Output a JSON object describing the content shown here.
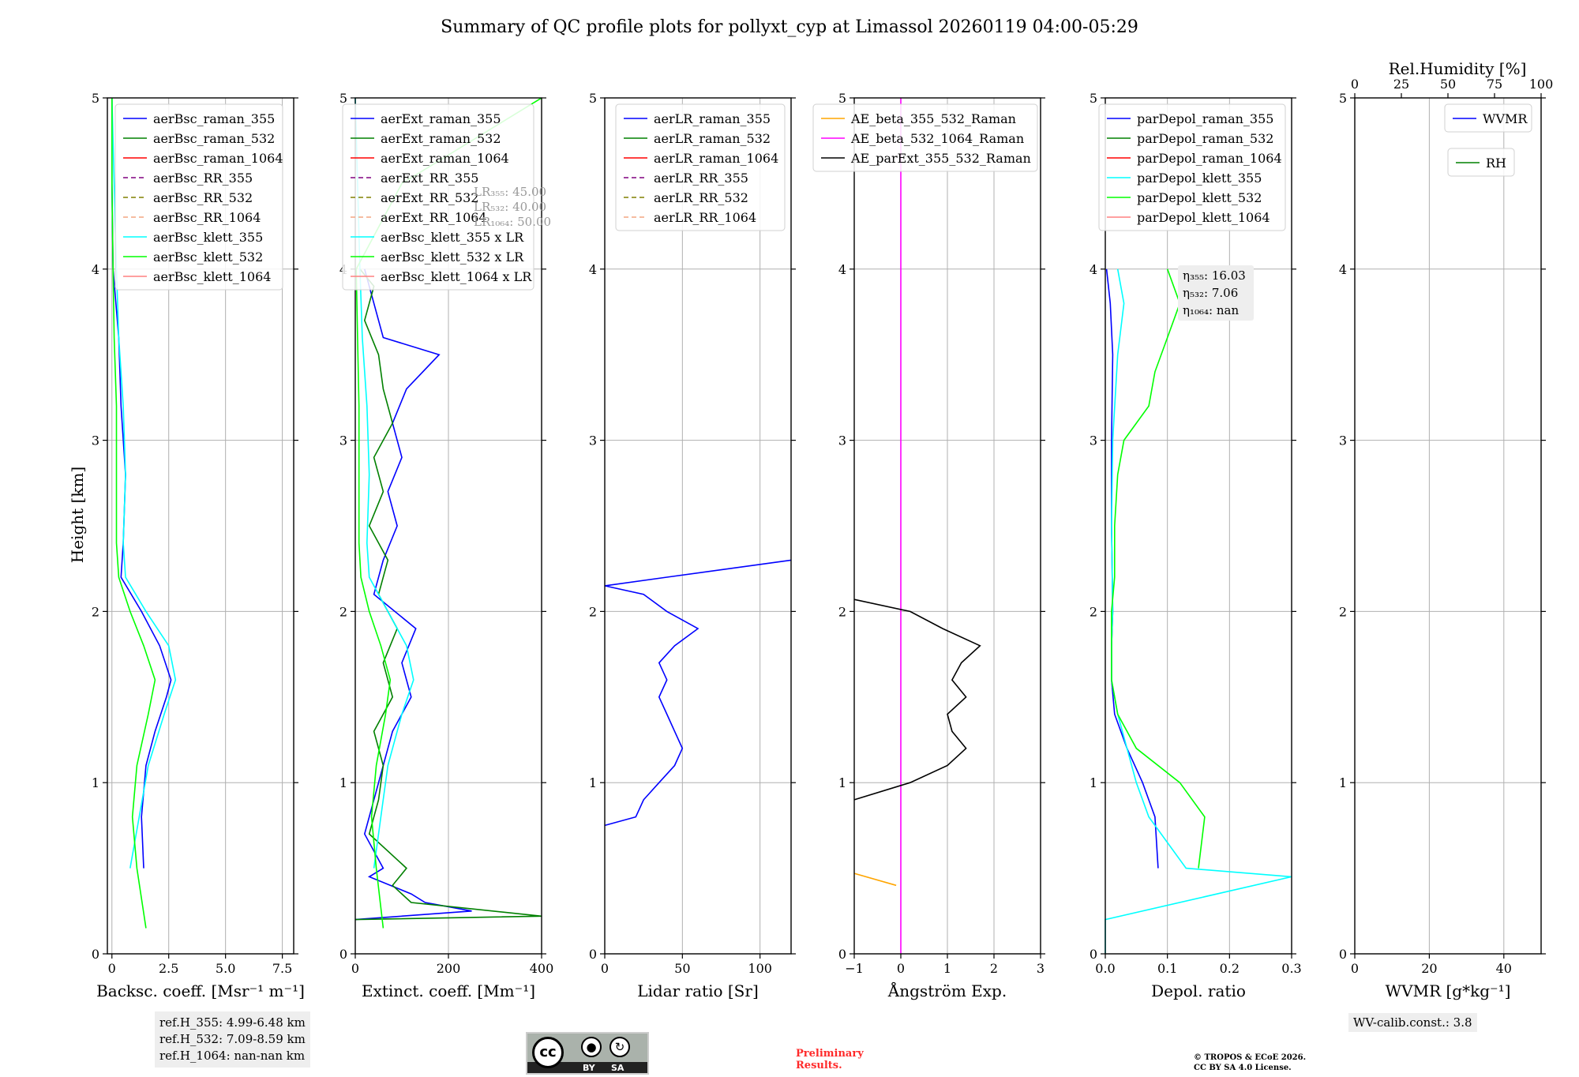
{
  "page": {
    "title": "Summary of QC profile plots for pollyxt_cyp at Limassol 20260119 04:00-05:29",
    "ylabel": "Height [km]",
    "ref_heights": [
      "ref.H_355: 4.99-6.48 km",
      "ref.H_532: 7.09-8.59 km",
      "ref.H_1064: nan-nan km"
    ],
    "license_badge": {
      "by": "BY",
      "sa": "SA",
      "cc": "cc"
    },
    "preliminary": [
      "Preliminary",
      "Results."
    ],
    "copyright": [
      "© TROPOS & ECoE 2026.",
      "CC BY SA 4.0 License."
    ],
    "wv_calib": "WV-calib.const.: 3.8",
    "colors": {
      "blue": "#0000ff",
      "green": "#008000",
      "red": "#ff0000",
      "purple": "#800080",
      "olive": "#808000",
      "salmon": "#f4a582",
      "cyan": "#00ffff",
      "lime": "#00ff00",
      "pink": "#ff8080",
      "orange": "#ffa500",
      "magenta": "#ff00ff",
      "black": "#000000"
    }
  },
  "chart_data": [
    {
      "type": "line",
      "id": "backscatter",
      "xlabel": "Backsc. coeff. [Msr⁻¹ m⁻¹]",
      "xlim": [
        -0.2,
        8
      ],
      "xticks": [
        0,
        2.5,
        5.0,
        7.5
      ],
      "xtick_labels": [
        "0",
        "2.5",
        "5.0",
        "7.5"
      ],
      "ylim": [
        0,
        5
      ],
      "yticks": [
        0,
        1,
        2,
        3,
        4,
        5
      ],
      "legend": [
        "aerBsc_raman_355",
        "aerBsc_raman_532",
        "aerBsc_raman_1064",
        "aerBsc_RR_355",
        "aerBsc_RR_532",
        "aerBsc_RR_1064",
        "aerBsc_klett_355",
        "aerBsc_klett_532",
        "aerBsc_klett_1064"
      ],
      "legend_styles": [
        "blue-solid",
        "green-solid",
        "red-solid",
        "purple-dash",
        "olive-dash",
        "salmon-dash",
        "cyan-solid",
        "lime-solid",
        "pink-solid"
      ],
      "series": [
        {
          "name": "aerBsc_raman_355",
          "color": "blue",
          "y": [
            0.5,
            0.8,
            1.1,
            1.3,
            1.5,
            1.6,
            1.8,
            2.0,
            2.2,
            2.4,
            2.8,
            3.2,
            3.6,
            4.0,
            4.5,
            5.0
          ],
          "x": [
            1.4,
            1.3,
            1.5,
            1.9,
            2.4,
            2.6,
            2.1,
            1.3,
            0.4,
            0.5,
            0.6,
            0.4,
            0.3,
            0.05,
            0.0,
            0.0
          ]
        },
        {
          "name": "aerBsc_klett_355",
          "color": "cyan",
          "y": [
            0.5,
            0.8,
            1.1,
            1.4,
            1.6,
            1.8,
            2.0,
            2.2,
            2.4,
            2.8,
            3.2,
            3.6,
            4.0,
            4.5,
            5.0
          ],
          "x": [
            0.8,
            1.2,
            1.6,
            2.3,
            2.8,
            2.5,
            1.5,
            0.6,
            0.5,
            0.6,
            0.5,
            0.3,
            0.2,
            0.1,
            0.0
          ]
        },
        {
          "name": "aerBsc_klett_532",
          "color": "lime",
          "y": [
            0.15,
            0.5,
            0.8,
            1.1,
            1.4,
            1.6,
            1.8,
            2.0,
            2.2,
            2.4,
            2.8,
            3.2,
            3.6,
            4.0,
            4.5,
            5.0
          ],
          "x": [
            1.5,
            1.1,
            0.9,
            1.1,
            1.6,
            1.9,
            1.4,
            0.8,
            0.3,
            0.2,
            0.2,
            0.2,
            0.1,
            0.05,
            0.0,
            0.0
          ]
        }
      ]
    },
    {
      "type": "line",
      "id": "extinction",
      "xlabel": "Extinct. coeff. [Mm⁻¹]",
      "xlim": [
        0,
        400
      ],
      "xticks": [
        0,
        200,
        400
      ],
      "xtick_labels": [
        "0",
        "200",
        "400"
      ],
      "ylim": [
        0,
        5
      ],
      "yticks": [
        0,
        1,
        2,
        3,
        4,
        5
      ],
      "legend": [
        "aerExt_raman_355",
        "aerExt_raman_532",
        "aerExt_raman_1064",
        "aerExt_RR_355",
        "aerExt_RR_532",
        "aerExt_RR_1064",
        "aerBsc_klett_355 x LR",
        "aerBsc_klett_532 x LR",
        "aerBsc_klett_1064 x LR"
      ],
      "legend_styles": [
        "blue-solid",
        "green-solid",
        "red-solid",
        "purple-dash",
        "olive-dash",
        "salmon-dash",
        "cyan-solid",
        "lime-solid",
        "pink-solid"
      ],
      "lr_labels": [
        "LR₃₅₅: 45.00",
        "LR₅₃₂: 40.00",
        "LR₁₀₆₄: 50.00"
      ],
      "series": [
        {
          "name": "aerExt_raman_355",
          "color": "blue",
          "y": [
            0.2,
            0.25,
            0.3,
            0.35,
            0.45,
            0.5,
            0.7,
            0.9,
            1.1,
            1.3,
            1.5,
            1.7,
            1.9,
            2.1,
            2.3,
            2.5,
            2.7,
            2.9,
            3.1,
            3.3,
            3.5,
            3.6,
            3.8,
            4.0
          ],
          "x": [
            0,
            250,
            150,
            120,
            30,
            60,
            20,
            40,
            60,
            80,
            120,
            100,
            130,
            40,
            60,
            90,
            70,
            100,
            80,
            110,
            180,
            60,
            40,
            20
          ]
        },
        {
          "name": "aerExt_raman_532",
          "color": "green",
          "y": [
            0.2,
            0.22,
            0.3,
            0.4,
            0.5,
            0.7,
            0.9,
            1.1,
            1.3,
            1.5,
            1.7,
            1.9,
            2.1,
            2.3,
            2.5,
            2.7,
            2.9,
            3.1,
            3.3,
            3.5,
            3.7,
            3.9,
            4.0
          ],
          "x": [
            0,
            400,
            120,
            80,
            110,
            30,
            50,
            60,
            40,
            80,
            60,
            90,
            50,
            70,
            30,
            60,
            40,
            80,
            60,
            50,
            20,
            40,
            10
          ]
        },
        {
          "name": "aerBsc_klett_355 x LR",
          "color": "cyan",
          "y": [
            0.5,
            0.8,
            1.1,
            1.4,
            1.6,
            1.8,
            2.0,
            2.2,
            2.4,
            2.8,
            3.2,
            3.6,
            4.0,
            4.5,
            5.0
          ],
          "x": [
            40,
            55,
            70,
            100,
            125,
            110,
            70,
            30,
            25,
            30,
            25,
            15,
            10,
            5,
            0
          ]
        },
        {
          "name": "aerBsc_klett_532 x LR",
          "color": "lime",
          "y": [
            0.15,
            0.5,
            0.8,
            1.1,
            1.4,
            1.6,
            1.8,
            2.0,
            2.2,
            2.4,
            2.8,
            3.2,
            3.6,
            4.0,
            4.5,
            5.0
          ],
          "x": [
            60,
            45,
            35,
            45,
            65,
            75,
            55,
            30,
            12,
            8,
            8,
            8,
            5,
            2,
            100,
            400
          ]
        }
      ]
    },
    {
      "type": "line",
      "id": "lidar_ratio",
      "xlabel": "Lidar ratio [Sr]",
      "xlim": [
        0,
        120
      ],
      "xticks": [
        0,
        50,
        100
      ],
      "xtick_labels": [
        "0",
        "50",
        "100"
      ],
      "ylim": [
        0,
        5
      ],
      "yticks": [
        0,
        1,
        2,
        3,
        4,
        5
      ],
      "legend": [
        "aerLR_raman_355",
        "aerLR_raman_532",
        "aerLR_raman_1064",
        "aerLR_RR_355",
        "aerLR_RR_532",
        "aerLR_RR_1064"
      ],
      "legend_styles": [
        "blue-solid",
        "green-solid",
        "red-solid",
        "purple-dash",
        "olive-dash",
        "salmon-dash"
      ],
      "series": [
        {
          "name": "aerLR_raman_355",
          "color": "blue",
          "y": [
            0.75,
            0.8,
            0.9,
            1.0,
            1.1,
            1.2,
            1.3,
            1.4,
            1.5,
            1.6,
            1.7,
            1.8,
            1.9,
            2.0,
            2.1,
            2.15,
            2.2,
            2.3
          ],
          "x": [
            0,
            20,
            25,
            35,
            45,
            50,
            45,
            40,
            35,
            40,
            35,
            45,
            60,
            40,
            25,
            0,
            40,
            120
          ]
        }
      ]
    },
    {
      "type": "line",
      "id": "angstrom",
      "xlabel": "Ångström Exp.",
      "xlim": [
        -1,
        3
      ],
      "xticks": [
        -1,
        0,
        1,
        2,
        3
      ],
      "xtick_labels": [
        "−1",
        "0",
        "1",
        "2",
        "3"
      ],
      "ylim": [
        0,
        5
      ],
      "yticks": [
        0,
        1,
        2,
        3,
        4,
        5
      ],
      "legend": [
        "AE_beta_355_532_Raman",
        "AE_beta_532_1064_Raman",
        "AE_parExt_355_532_Raman"
      ],
      "legend_styles": [
        "orange-solid",
        "magenta-solid",
        "black-solid"
      ],
      "series": [
        {
          "name": "AE_beta_355_532_Raman",
          "color": "orange",
          "y": [
            0.47,
            0.4
          ],
          "x": [
            -1,
            -0.1
          ]
        },
        {
          "name": "AE_beta_532_1064_Raman",
          "color": "magenta",
          "y": [
            0,
            5
          ],
          "x": [
            0,
            0
          ]
        },
        {
          "name": "AE_parExt_355_532_Raman",
          "color": "black",
          "y": [
            0.9,
            1.0,
            1.1,
            1.2,
            1.3,
            1.4,
            1.5,
            1.6,
            1.7,
            1.8,
            1.9,
            2.0,
            2.07
          ],
          "x": [
            -1,
            0.2,
            1.0,
            1.4,
            1.1,
            1.0,
            1.4,
            1.1,
            1.3,
            1.7,
            0.9,
            0.2,
            -1
          ]
        }
      ]
    },
    {
      "type": "line",
      "id": "depol",
      "xlabel": "Depol. ratio",
      "xlim": [
        0,
        0.3
      ],
      "xticks": [
        0,
        0.1,
        0.2,
        0.3
      ],
      "xtick_labels": [
        "0.0",
        "0.1",
        "0.2",
        "0.3"
      ],
      "ylim": [
        0,
        5
      ],
      "yticks": [
        0,
        1,
        2,
        3,
        4,
        5
      ],
      "legend": [
        "parDepol_raman_355",
        "parDepol_raman_532",
        "parDepol_raman_1064",
        "parDepol_klett_355",
        "parDepol_klett_532",
        "parDepol_klett_1064"
      ],
      "legend_styles": [
        "blue-solid",
        "green-solid",
        "red-solid",
        "cyan-solid",
        "lime-solid",
        "pink-solid"
      ],
      "eta_labels": [
        "η₃₅₅: 16.03",
        "η₅₃₂: 7.06",
        "η₁₀₆₄: nan"
      ],
      "series": [
        {
          "name": "parDepol_raman_355",
          "color": "blue",
          "y": [
            0.5,
            0.8,
            1.0,
            1.2,
            1.4,
            1.6,
            1.8,
            2.0,
            2.5,
            3.0,
            3.5,
            3.8,
            4.0
          ],
          "x": [
            0.085,
            0.08,
            0.06,
            0.035,
            0.015,
            0.01,
            0.01,
            0.012,
            0.01,
            0.01,
            0.012,
            0.008,
            0.002
          ]
        },
        {
          "name": "parDepol_klett_355",
          "color": "cyan",
          "y": [
            0.0,
            0.2,
            0.45,
            0.5,
            0.8,
            1.0,
            1.2,
            1.4,
            1.6,
            1.8,
            2.0,
            2.5,
            3.0,
            3.5,
            3.8,
            4.0
          ],
          "x": [
            0.0,
            0.0,
            0.3,
            0.13,
            0.07,
            0.05,
            0.035,
            0.02,
            0.01,
            0.01,
            0.012,
            0.01,
            0.012,
            0.02,
            0.03,
            0.02
          ]
        },
        {
          "name": "parDepol_klett_532",
          "color": "lime",
          "y": [
            0.5,
            0.8,
            1.0,
            1.2,
            1.4,
            1.6,
            1.8,
            2.0,
            2.2,
            2.5,
            2.8,
            3.0,
            3.2,
            3.4,
            3.6,
            3.8,
            4.0
          ],
          "x": [
            0.15,
            0.16,
            0.12,
            0.05,
            0.02,
            0.01,
            0.01,
            0.01,
            0.015,
            0.015,
            0.02,
            0.03,
            0.07,
            0.08,
            0.1,
            0.12,
            0.1
          ]
        }
      ]
    },
    {
      "type": "line",
      "id": "wvmr",
      "xlabel": "WVMR [g*kg⁻¹]",
      "xlim": [
        0,
        50
      ],
      "xticks": [
        0,
        20,
        40
      ],
      "xtick_labels": [
        "0",
        "20",
        "40"
      ],
      "top_label": "Rel.Humidity [%]",
      "top_lim": [
        0,
        100
      ],
      "top_ticks": [
        0,
        25,
        50,
        75,
        100
      ],
      "ylim": [
        0,
        5
      ],
      "yticks": [
        0,
        1,
        2,
        3,
        4,
        5
      ],
      "legend": [
        "WVMR"
      ],
      "legend_styles": [
        "blue-solid"
      ],
      "legend2": [
        "RH"
      ],
      "legend2_styles": [
        "green-solid"
      ],
      "series": []
    }
  ]
}
